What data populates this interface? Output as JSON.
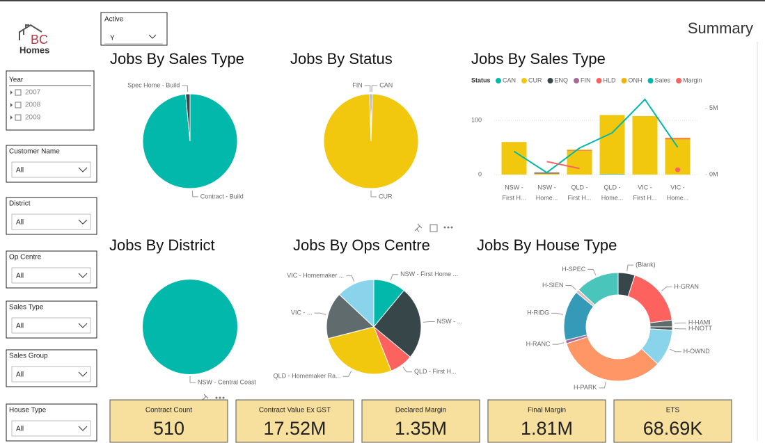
{
  "logo": {
    "letters": "BC",
    "name": "Homes"
  },
  "page_title": "Summary",
  "active_slicer": {
    "label": "Active",
    "value": "Y"
  },
  "year_slicer": {
    "label": "Year",
    "items": [
      "2007",
      "2008",
      "2009"
    ]
  },
  "slicers": [
    {
      "label": "Customer Name",
      "value": "All"
    },
    {
      "label": "District",
      "value": "All"
    },
    {
      "label": "Op Centre",
      "value": "All"
    },
    {
      "label": "Sales Type",
      "value": "All"
    },
    {
      "label": "Sales Group",
      "value": "All"
    },
    {
      "label": "House Type",
      "value": "All"
    }
  ],
  "chart_data": [
    {
      "type": "pie",
      "title": "Jobs By Sales Type",
      "categories": [
        "Contract - Build",
        "Spec Home - Build"
      ],
      "values": [
        98.5,
        1.5
      ],
      "colors": [
        "#01B8AA",
        "#374649"
      ]
    },
    {
      "type": "pie",
      "title": "Jobs By Status",
      "categories": [
        "CAN",
        "CUR",
        "FIN"
      ],
      "values": [
        0.5,
        99,
        0.5
      ],
      "colors": [
        "#01B8AA",
        "#F2C80F",
        "#A66999"
      ]
    },
    {
      "type": "combo",
      "title": "Jobs By Sales Type",
      "legend_title": "Status",
      "categories": [
        [
          "NSW -",
          "First H..."
        ],
        [
          "NSW -",
          "Home..."
        ],
        [
          "QLD -",
          "First H..."
        ],
        [
          "QLD -",
          "Home..."
        ],
        [
          "VIC -",
          "First H..."
        ],
        [
          "VIC -",
          "Home..."
        ]
      ],
      "series": [
        {
          "name": "CAN",
          "color": "#01B8AA",
          "values": [
            0,
            0,
            0,
            1,
            0,
            0
          ]
        },
        {
          "name": "CUR",
          "color": "#F2C80F",
          "values": [
            59,
            2,
            44,
            109,
            108,
            65
          ]
        },
        {
          "name": "ENQ",
          "color": "#374649",
          "values": [
            0,
            1,
            0,
            0,
            0,
            0
          ]
        },
        {
          "name": "FIN",
          "color": "#A66999",
          "values": [
            0,
            1,
            0,
            0,
            0,
            0
          ]
        },
        {
          "name": "HLD",
          "color": "#FD625E",
          "values": [
            0,
            0,
            1,
            0,
            0,
            2
          ]
        },
        {
          "name": "ONH",
          "color": "#F0B400",
          "values": [
            1,
            0,
            1,
            0,
            0,
            1
          ]
        },
        {
          "name": "Sales",
          "color": "#01B8AA",
          "type": "line",
          "axis": "y2",
          "values": [
            1750000,
            150000,
            2000000,
            3150000,
            5670000,
            2060000
          ]
        },
        {
          "name": "Margin",
          "color": "#FD625E",
          "type": "line",
          "axis": "y2",
          "values": [
            null,
            980000,
            460000,
            null,
            null,
            360000
          ]
        }
      ],
      "ylim": [
        0,
        140
      ],
      "yticks": [
        0,
        100
      ],
      "y2lim": [
        0,
        5720000
      ],
      "y2ticks": [
        {
          "value": 0,
          "label": "0M"
        },
        {
          "value": 5000000,
          "label": "5M"
        }
      ],
      "grid": true
    },
    {
      "type": "pie",
      "title": "Jobs By District",
      "categories": [
        "NSW - Central Coast"
      ],
      "values": [
        100
      ],
      "colors": [
        "#01B8AA"
      ]
    },
    {
      "type": "pie",
      "title": "Jobs By Ops Centre",
      "categories": [
        "NSW - First Home ...",
        "NSW - ...",
        "QLD - First H...",
        "QLD - Homemaker Ra...",
        "VIC - ...",
        "VIC - Homemaker ..."
      ],
      "values": [
        11,
        25,
        8,
        27,
        16,
        13
      ],
      "colors": [
        "#01B8AA",
        "#374649",
        "#FD625E",
        "#F2C80F",
        "#5F6B6D",
        "#8AD4EB"
      ]
    },
    {
      "type": "donut",
      "title": "Jobs By House Type",
      "categories": [
        "(Blank)",
        "H-GRAN",
        "H-HAMI",
        "H-NOTT",
        "H-OWND",
        "H-PARK",
        "H-RANC",
        "H-RIDG",
        "H-SIEN",
        "H-SPEC"
      ],
      "values": [
        5,
        18,
        2,
        1,
        11,
        33,
        1,
        15,
        1,
        13
      ],
      "colors": [
        "#374649",
        "#FD625E",
        "#5F6B6D",
        "#4A5355",
        "#8AD4EB",
        "#FE9666",
        "#A66999",
        "#3599B8",
        "#DFBFBF",
        "#4AC5BB"
      ]
    }
  ],
  "cards": [
    {
      "title": "Contract Count",
      "value": "510"
    },
    {
      "title": "Contract Value Ex GST",
      "value": "17.52M"
    },
    {
      "title": "Declared Margin",
      "value": "1.35M"
    },
    {
      "title": "Final Margin",
      "value": "1.81M"
    },
    {
      "title": "ETS",
      "value": "68.69K"
    }
  ]
}
